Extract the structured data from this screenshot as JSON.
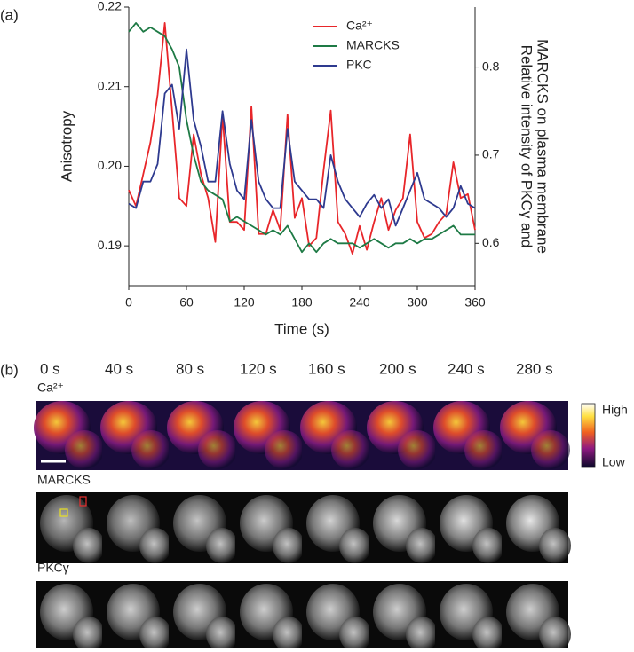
{
  "chart_data": {
    "type": "line",
    "panel_label": "(a)",
    "xlabel": "Time (s)",
    "ylabel": "Anisotropy",
    "y2label": [
      "Relative intensity of PKCγ and",
      "MARCKS  on plasma membrane"
    ],
    "x": [
      0,
      7.5,
      15,
      22.5,
      30,
      37.5,
      45,
      52.5,
      60,
      67.5,
      75,
      82.5,
      90,
      97.5,
      105,
      112.5,
      120,
      127.5,
      135,
      142.5,
      150,
      157.5,
      165,
      172.5,
      180,
      187.5,
      195,
      202.5,
      210,
      217.5,
      225,
      232.5,
      240,
      247.5,
      255,
      262.5,
      270,
      277.5,
      285,
      292.5,
      300,
      307.5,
      315,
      322.5,
      330,
      337.5,
      345,
      352.5,
      360
    ],
    "series": [
      {
        "name": "Ca²⁺",
        "color": "#e8262a",
        "values": [
          0.197,
          0.195,
          0.199,
          0.203,
          0.209,
          0.218,
          0.207,
          0.196,
          0.195,
          0.204,
          0.199,
          0.196,
          0.1905,
          0.2065,
          0.193,
          0.193,
          0.192,
          0.2075,
          0.1915,
          0.1915,
          0.1945,
          0.192,
          0.2065,
          0.1935,
          0.196,
          0.19,
          0.191,
          0.1995,
          0.207,
          0.193,
          0.1915,
          0.189,
          0.1925,
          0.1895,
          0.193,
          0.196,
          0.192,
          0.1945,
          0.196,
          0.204,
          0.193,
          0.191,
          0.1915,
          0.193,
          0.194,
          0.2005,
          0.196,
          0.1965,
          0.192
        ]
      },
      {
        "name": "MARCKS",
        "color": "#1e7a45",
        "axis": "y2",
        "values": [
          0.84,
          0.85,
          0.84,
          0.845,
          0.84,
          0.835,
          0.82,
          0.8,
          0.74,
          0.7,
          0.67,
          0.66,
          0.655,
          0.65,
          0.625,
          0.63,
          0.625,
          0.62,
          0.615,
          0.61,
          0.615,
          0.61,
          0.62,
          0.605,
          0.59,
          0.6,
          0.59,
          0.6,
          0.605,
          0.6,
          0.6,
          0.6,
          0.595,
          0.6,
          0.605,
          0.6,
          0.595,
          0.6,
          0.6,
          0.605,
          0.6,
          0.605,
          0.605,
          0.61,
          0.615,
          0.62,
          0.61,
          0.61,
          0.61
        ]
      },
      {
        "name": "PKC",
        "color": "#2e3a8f",
        "axis": "y2",
        "values": [
          0.645,
          0.64,
          0.67,
          0.67,
          0.69,
          0.77,
          0.78,
          0.73,
          0.82,
          0.74,
          0.71,
          0.67,
          0.67,
          0.75,
          0.69,
          0.66,
          0.65,
          0.74,
          0.67,
          0.65,
          0.64,
          0.64,
          0.73,
          0.67,
          0.66,
          0.65,
          0.65,
          0.64,
          0.7,
          0.67,
          0.65,
          0.64,
          0.63,
          0.645,
          0.655,
          0.64,
          0.65,
          0.62,
          0.64,
          0.66,
          0.68,
          0.65,
          0.645,
          0.64,
          0.63,
          0.64,
          0.665,
          0.645,
          0.64
        ]
      }
    ],
    "xlim": [
      0,
      360
    ],
    "xticks": [
      0,
      60,
      120,
      180,
      240,
      300,
      360
    ],
    "ylim": [
      0.185,
      0.22
    ],
    "yticks": [
      0.19,
      {
        "value": 0.2,
        "label": "0.20"
      },
      0.21,
      0.22
    ],
    "y2lim": [
      0.552,
      0.868
    ],
    "y2ticks": [
      0.6,
      0.7,
      0.8
    ],
    "legend": "top-center"
  },
  "panel_b": {
    "panel_label": "(b)",
    "times": [
      "0 s",
      "40 s",
      "80 s",
      "120 s",
      "160 s",
      "200 s",
      "240 s",
      "280 s"
    ],
    "rows": [
      "Ca²⁺",
      "MARCKS",
      "PKCγ"
    ],
    "colorbar": {
      "high": "High",
      "low": "Low"
    }
  }
}
